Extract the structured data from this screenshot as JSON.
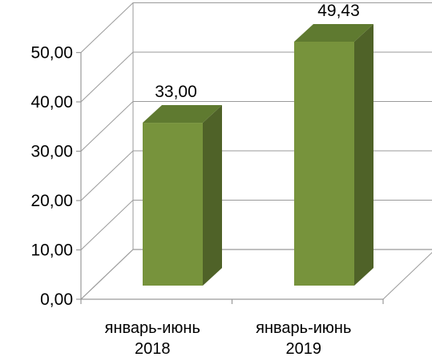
{
  "chart_data": {
    "type": "bar",
    "style": "3d-column",
    "categories": [
      "январь-июнь 2018",
      "январь-июнь 2019"
    ],
    "category_lines": [
      [
        "январь-июнь",
        "2018"
      ],
      [
        "январь-июнь",
        "2019"
      ]
    ],
    "values": [
      33.0,
      49.43
    ],
    "data_labels": [
      "33,00",
      "49,43"
    ],
    "y_ticks": [
      "0,00",
      "10,00",
      "20,00",
      "30,00",
      "40,00",
      "50,00"
    ],
    "ylim": [
      0,
      50
    ],
    "grid": true,
    "legend": "none",
    "colors": {
      "bar_front": "#77933C",
      "bar_top": "#5F7A30",
      "bar_side": "#4F6228",
      "grid": "#9a9a9a"
    }
  }
}
